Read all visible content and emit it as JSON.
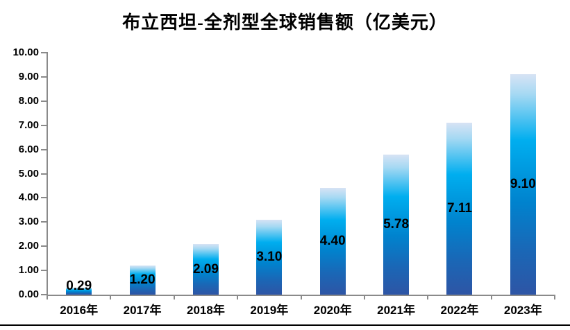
{
  "chart_data": {
    "type": "bar",
    "title": "布立西坦-全剂型全球销售额（亿美元）",
    "categories": [
      "2016年",
      "2017年",
      "2018年",
      "2019年",
      "2020年",
      "2021年",
      "2022年",
      "2023年"
    ],
    "values": [
      0.29,
      1.2,
      2.09,
      3.1,
      4.4,
      5.78,
      7.11,
      9.1
    ],
    "data_labels": [
      "0.29",
      "1.20",
      "2.09",
      "3.10",
      "4.40",
      "5.78",
      "7.11",
      "9.10"
    ],
    "y_tick_labels": [
      "10.00",
      "9.00",
      "8.00",
      "7.00",
      "6.00",
      "5.00",
      "4.00",
      "3.00",
      "2.00",
      "1.00",
      "0.00"
    ],
    "ylim": [
      0,
      10
    ],
    "xlabel": "",
    "ylabel": "",
    "grid": false,
    "legend": false,
    "data_label_position": "inside-center",
    "colors": {
      "axis": "#8a8a8a",
      "label": "#000000",
      "title": "#000000",
      "bottom_rule": "#000000",
      "background": "#ffffff"
    },
    "bar_gradient": [
      {
        "color": "#d7e3f4",
        "pos": 0
      },
      {
        "color": "#a6d9f3",
        "pos": 9
      },
      {
        "color": "#00aeef",
        "pos": 30
      },
      {
        "color": "#0083ce",
        "pos": 58
      },
      {
        "color": "#1a67b6",
        "pos": 80
      },
      {
        "color": "#2e55a5",
        "pos": 100
      }
    ]
  }
}
